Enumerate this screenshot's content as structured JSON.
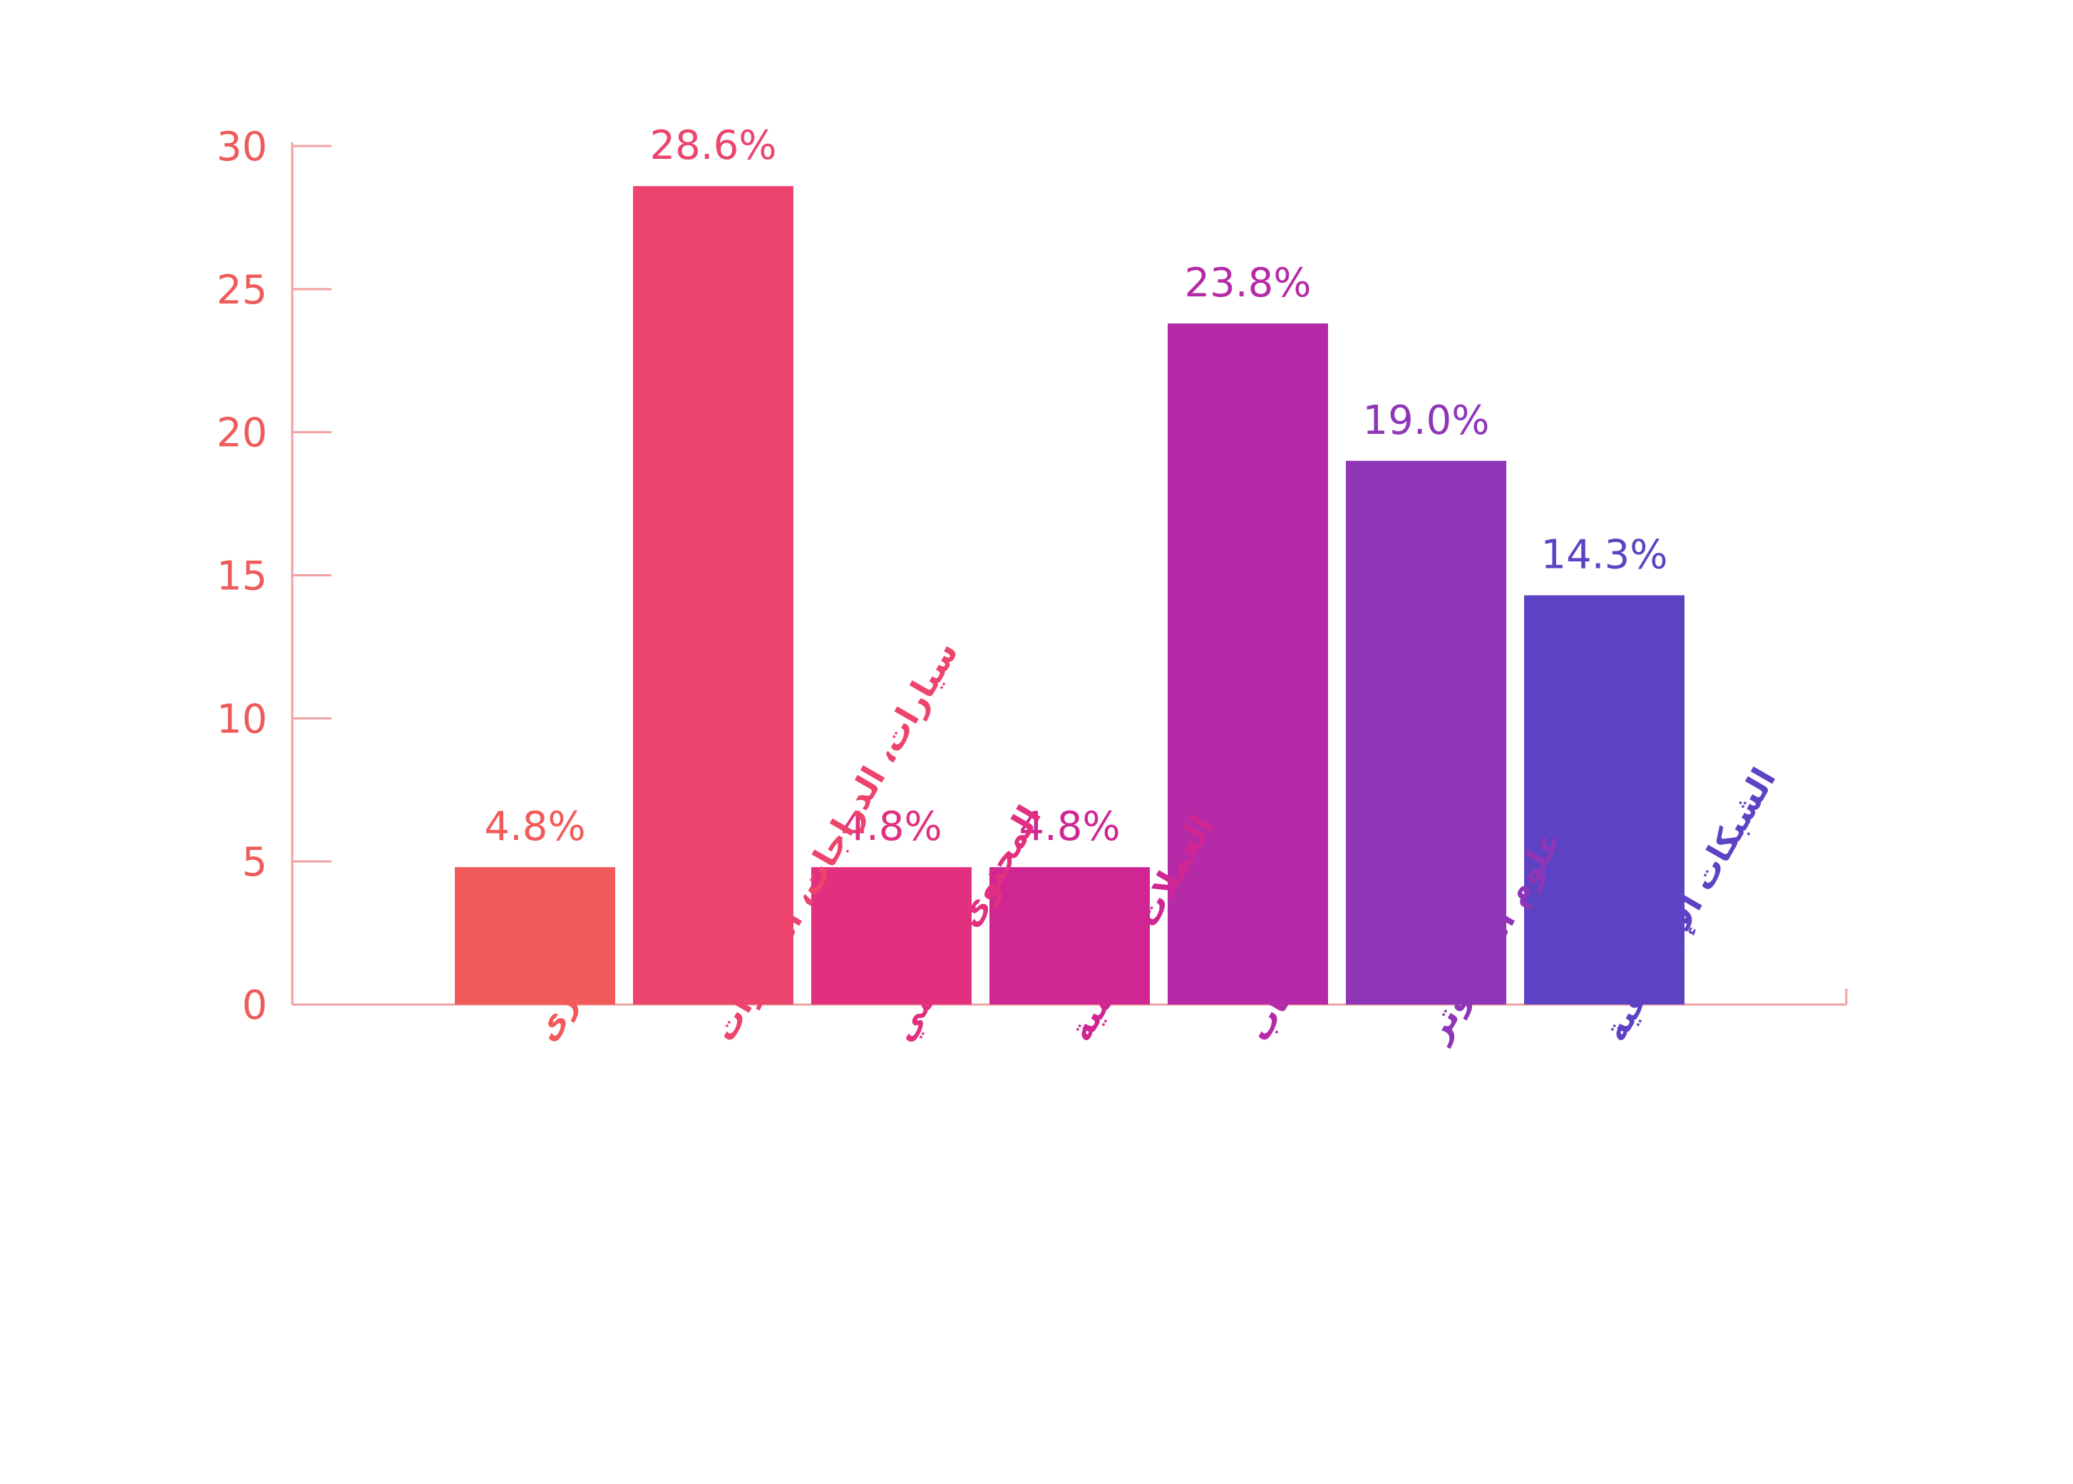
{
  "chart_data": {
    "type": "bar",
    "categories": [
      "أخرى",
      "سيارات، الدراجات، الطائرات",
      "المحتوى الرقمي",
      "العملات الرقمية",
      "الألعاب",
      "علوم الكمبيوتر",
      "الشبكات الإجتماعية"
    ],
    "values": [
      4.8,
      28.6,
      4.8,
      4.8,
      23.8,
      19.0,
      14.3
    ],
    "value_labels": [
      "4.8%",
      "28.6%",
      "4.8%",
      "4.8%",
      "23.8%",
      "19.0%",
      "14.3%"
    ],
    "colors": [
      "#f25a5a",
      "#ec446d",
      "#e2307f",
      "#d02693",
      "#b52aa6",
      "#8e36b7",
      "#5d43c3"
    ],
    "axis_color": "#ef5a5a",
    "yticks": [
      "0",
      "5",
      "10",
      "15",
      "20",
      "25",
      "30"
    ],
    "ylim": [
      0,
      30
    ],
    "grid": false,
    "title": "",
    "xlabel": "",
    "ylabel": ""
  }
}
